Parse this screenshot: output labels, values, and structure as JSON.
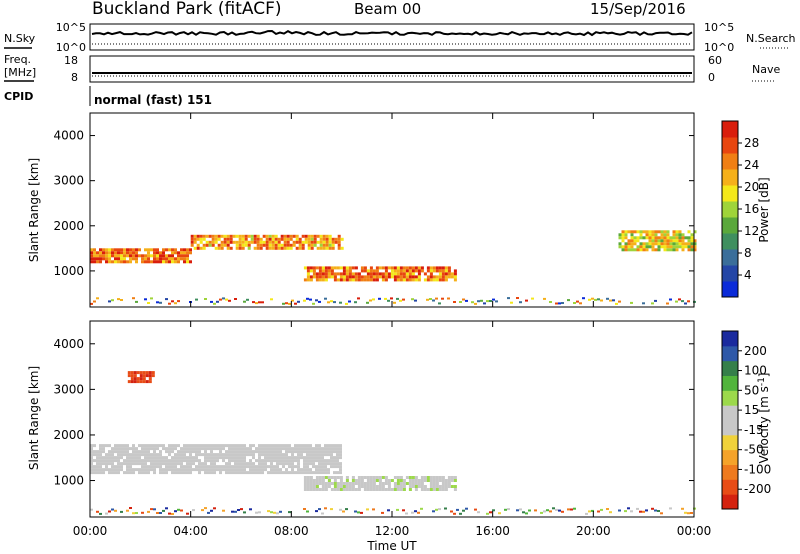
{
  "header": {
    "station": "Buckland Park (fitACF)",
    "beam": "Beam 00",
    "date": "15/Sep/2016"
  },
  "params": {
    "nsky_label": "N.Sky",
    "nsearch_label": "N.Search",
    "freq_label_line1": "Freq.",
    "freq_label_line2": "[MHz]",
    "nave_label": "Nave",
    "cpid_label": "CPID",
    "cpid_value": "normal (fast) 151",
    "noise_ticks_left": [
      "10^5",
      "10^0"
    ],
    "noise_ticks_right": [
      "10^5",
      "10^0"
    ],
    "freq_ticks": [
      "18",
      "8"
    ],
    "nave_ticks": [
      "60",
      "0"
    ]
  },
  "axes": {
    "time_label": "Time UT",
    "time_ticks": [
      "00:00",
      "04:00",
      "08:00",
      "12:00",
      "16:00",
      "20:00",
      "00:00"
    ],
    "range_label": "Slant Range [km]",
    "range_ticks": [
      "1000",
      "2000",
      "3000",
      "4000"
    ]
  },
  "colorbars": {
    "power": {
      "label": "Power [dB]",
      "ticks": [
        "4",
        "8",
        "12",
        "16",
        "20",
        "24",
        "28"
      ],
      "colors": [
        "#0b2bd8",
        "#2446a6",
        "#3a6e9a",
        "#3f8f5f",
        "#5aa83b",
        "#9fd43a",
        "#f4e81a",
        "#f5b01a",
        "#f07f14",
        "#e8460f",
        "#d91e0c"
      ]
    },
    "velocity": {
      "label_prefix": "Velocity [m s",
      "label_sup": "-1",
      "label_suffix": "]",
      "ticks": [
        "200",
        "100",
        "50",
        "15",
        "-15",
        "-50",
        "-100",
        "-200"
      ],
      "colors": [
        "#1a2a9e",
        "#2e58a8",
        "#357f4a",
        "#51b43c",
        "#9cd94b",
        "#c8c8c8",
        "#c8c8c8",
        "#f0d23a",
        "#f5a32a",
        "#ee7a1e",
        "#e84c16",
        "#d4220f"
      ]
    }
  },
  "chart_data": [
    {
      "type": "heatmap",
      "name": "Power",
      "xlabel": "Time UT",
      "ylabel": "Slant Range [km]",
      "xlim": [
        0,
        24
      ],
      "ylim": [
        200,
        4500
      ],
      "zlabel": "Power [dB]",
      "zlim": [
        0,
        30
      ],
      "features": [
        {
          "from_hour": 0.0,
          "to_hour": 4.0,
          "range_km": [
            1200,
            1500
          ],
          "power_db": 24
        },
        {
          "from_hour": 4.0,
          "to_hour": 10.0,
          "range_km": [
            1500,
            1800
          ],
          "power_db": 22
        },
        {
          "from_hour": 8.5,
          "to_hour": 14.5,
          "range_km": [
            800,
            1100
          ],
          "power_db": 24
        },
        {
          "from_hour": 21.0,
          "to_hour": 24.0,
          "range_km": [
            1500,
            1900
          ],
          "power_db": 18
        }
      ]
    },
    {
      "type": "heatmap",
      "name": "Velocity",
      "xlabel": "Time UT",
      "ylabel": "Slant Range [km]",
      "xlim": [
        0,
        24
      ],
      "ylim": [
        200,
        4500
      ],
      "zlabel": "Velocity [m s-1]",
      "zlim": [
        -250,
        250
      ],
      "features": [
        {
          "from_hour": 0.0,
          "to_hour": 10.0,
          "range_km": [
            1200,
            1800
          ],
          "velocity": 0
        },
        {
          "from_hour": 8.5,
          "to_hour": 14.5,
          "range_km": [
            800,
            1100
          ],
          "velocity": 30
        },
        {
          "from_hour": 1.5,
          "to_hour": 2.5,
          "range_km": [
            3200,
            3400
          ],
          "velocity": -200
        }
      ]
    }
  ]
}
